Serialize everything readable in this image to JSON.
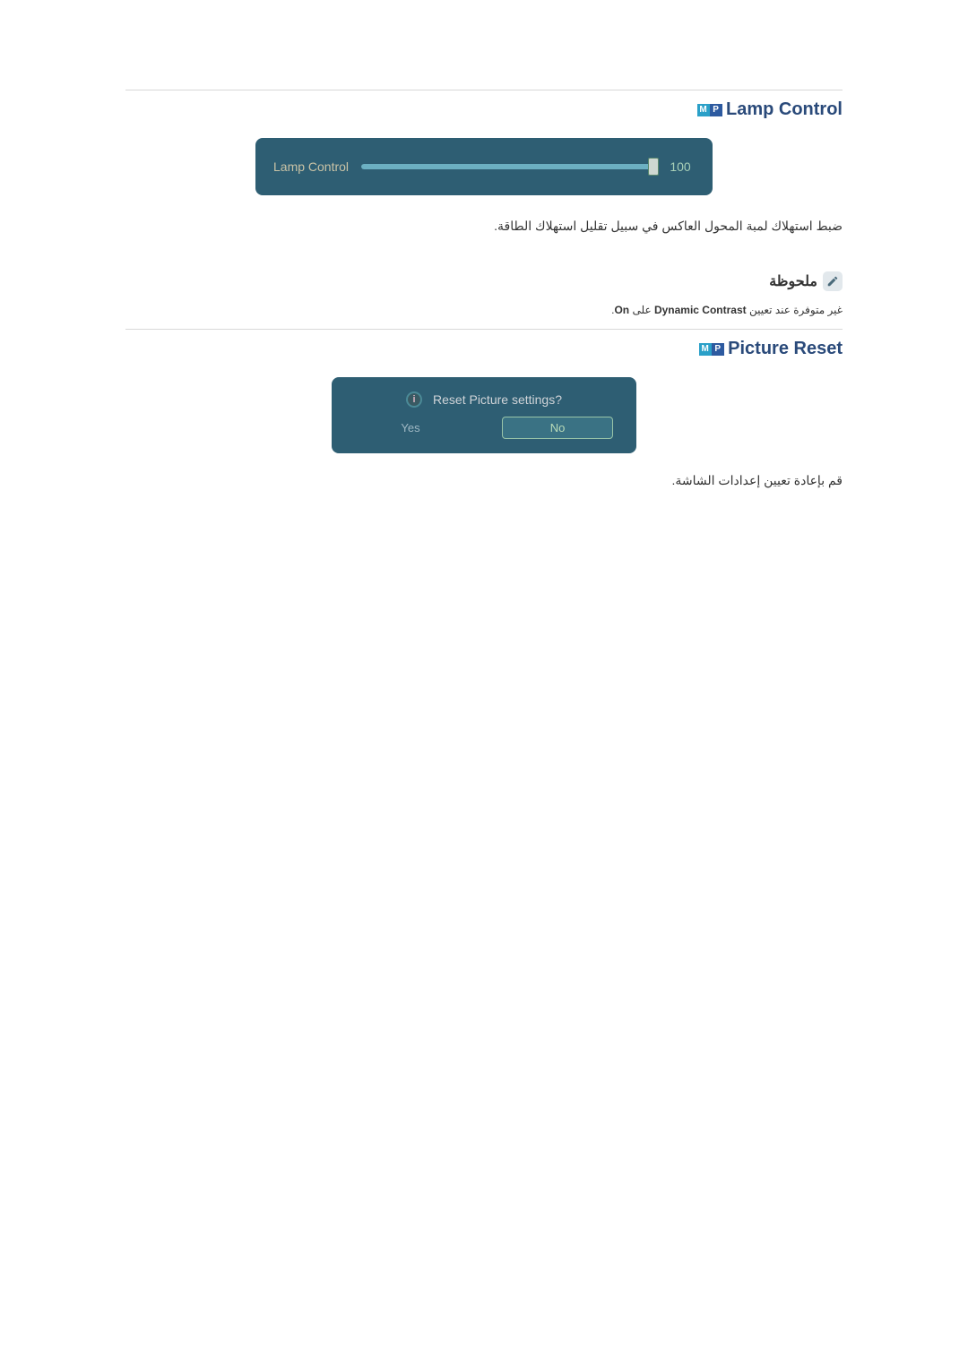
{
  "colors": {
    "panel_bg": "#2e5e73",
    "panel_text": "#c9c3a6",
    "panel_text2": "#d0d4d8",
    "slider_track": "#1a3a44",
    "slider_fill": "#6cb0c2",
    "slider_thumb_bg": "#cfd8d2",
    "slider_thumb_border": "#5c8a6f",
    "value_text": "#a8d0b8",
    "title_text": "#2a4a7a",
    "mp_m_bg": "#2aa0c8",
    "mp_p_bg": "#2d5aa0",
    "separator": "#d8d8d8",
    "body_text": "#333333",
    "note_icon_bg": "#e2e8ec",
    "note_icon_fg": "#4a6a7a",
    "note_title": "#333333",
    "btn_selected_bg": "#3a7284",
    "btn_selected_border": "#98c4a8",
    "btn_selected_text": "#b8dab8",
    "btn_text": "#9fb8c4",
    "info_icon_bg": "#395a63",
    "info_icon_ring": "#4a8a98",
    "info_icon_fg": "#d8b4c0"
  },
  "typography": {
    "title_fontsize": 20,
    "body_fontsize": 14,
    "note_fontsize": 12
  },
  "lamp": {
    "heading": "Lamp Control",
    "mp_m": "M",
    "mp_p": "P",
    "panel_label": "Lamp Control",
    "value": 100,
    "value_str": "100",
    "min": 0,
    "max": 100,
    "fill_pct": 100,
    "description": "ضبط استهلاك لمبة المحول العاكس في سبيل تقليل استهلاك الطاقة."
  },
  "note": {
    "title": "ملحوظة",
    "text_before": "غير متوفرة عند تعيين ",
    "text_bold": "Dynamic Contrast",
    "text_mid": " على ",
    "text_bold2": "On",
    "text_after": "."
  },
  "reset": {
    "heading": "Picture Reset",
    "mp_m": "M",
    "mp_p": "P",
    "info_glyph": "i",
    "question": "Reset Picture settings?",
    "yes_label": "Yes",
    "no_label": "No",
    "selected": "no",
    "description": "قم بإعادة تعيين إعدادات الشاشة."
  }
}
